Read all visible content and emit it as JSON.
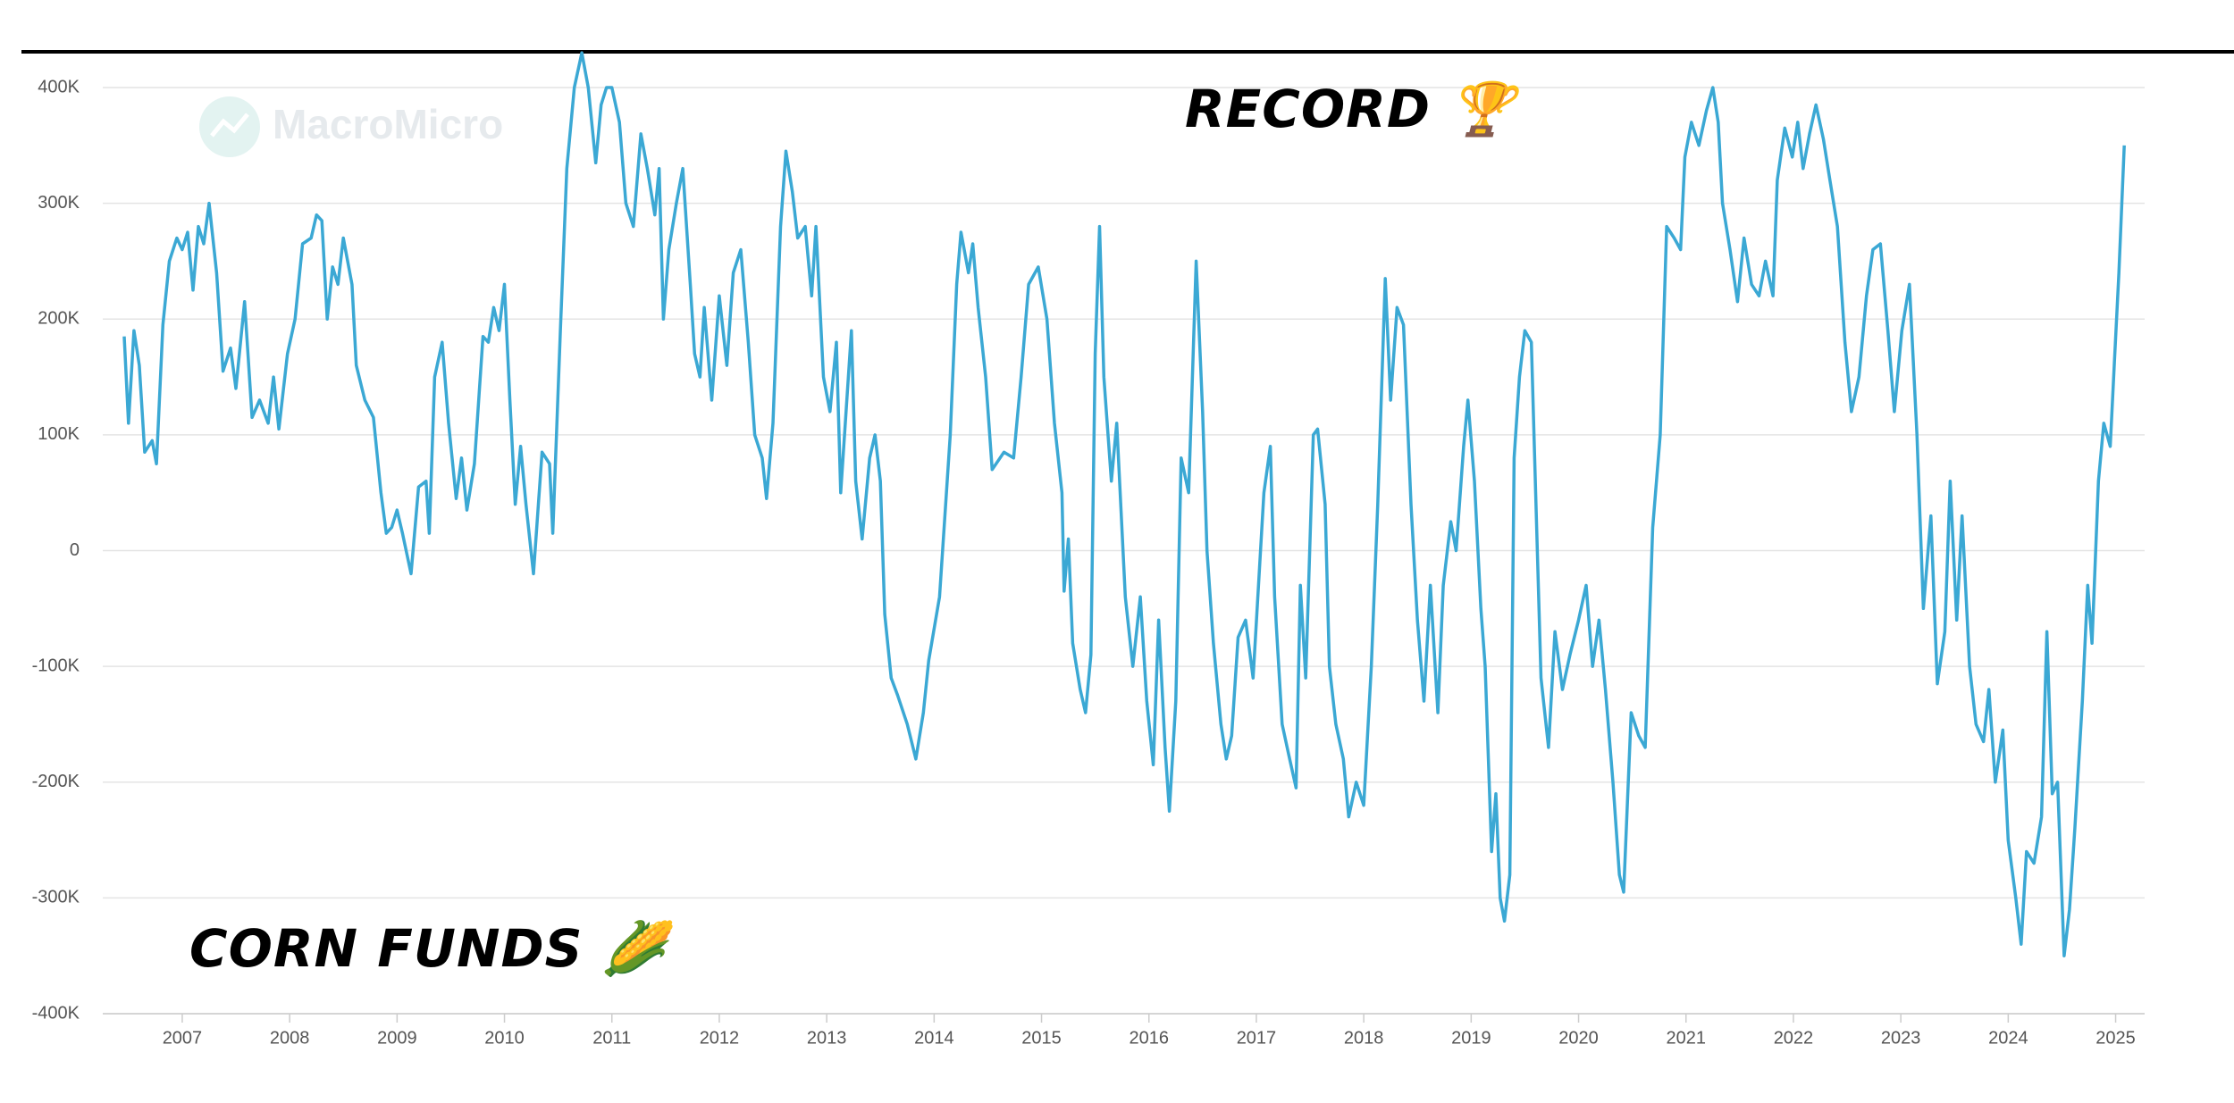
{
  "chart_data": {
    "type": "line",
    "watermark": "MacroMicro",
    "annotations": [
      "RECORD 🏆",
      "CORN FUNDS 🌽"
    ],
    "xlim": [
      2006.26,
      2025.27
    ],
    "xticks": [
      2007,
      2008,
      2009,
      2010,
      2011,
      2012,
      2013,
      2014,
      2015,
      2016,
      2017,
      2018,
      2019,
      2020,
      2021,
      2022,
      2023,
      2024,
      2025
    ],
    "ylim": [
      -400000,
      400000
    ],
    "yticks": [
      {
        "value": -400000,
        "label": "-400K"
      },
      {
        "value": -300000,
        "label": "-300K"
      },
      {
        "value": -200000,
        "label": "-200K"
      },
      {
        "value": -100000,
        "label": "-100K"
      },
      0,
      {
        "value": 100000,
        "label": "100K"
      },
      {
        "value": 200000,
        "label": "200K"
      },
      {
        "value": 300000,
        "label": "300K"
      },
      {
        "value": 400000,
        "label": "400K"
      }
    ],
    "grid": true,
    "series": [
      {
        "color": "#3ba8d4",
        "x": [
          2006.46,
          2006.5,
          2006.55,
          2006.6,
          2006.65,
          2006.72,
          2006.76,
          2006.82,
          2006.88,
          2006.95,
          2007.0,
          2007.05,
          2007.1,
          2007.15,
          2007.2,
          2007.25,
          2007.32,
          2007.38,
          2007.45,
          2007.5,
          2007.58,
          2007.65,
          2007.72,
          2007.8,
          2007.85,
          2007.9,
          2007.98,
          2008.05,
          2008.12,
          2008.2,
          2008.25,
          2008.3,
          2008.35,
          2008.4,
          2008.45,
          2008.5,
          2008.58,
          2008.62,
          2008.7,
          2008.78,
          2008.85,
          2008.9,
          2008.95,
          2009.0,
          2009.05,
          2009.13,
          2009.2,
          2009.27,
          2009.3,
          2009.35,
          2009.42,
          2009.48,
          2009.55,
          2009.6,
          2009.65,
          2009.72,
          2009.8,
          2009.85,
          2009.9,
          2009.95,
          2010.0,
          2010.05,
          2010.1,
          2010.15,
          2010.2,
          2010.27,
          2010.35,
          2010.42,
          2010.45,
          2010.52,
          2010.58,
          2010.65,
          2010.72,
          2010.78,
          2010.85,
          2010.9,
          2010.95,
          2011.0,
          2011.07,
          2011.13,
          2011.2,
          2011.27,
          2011.33,
          2011.4,
          2011.44,
          2011.48,
          2011.53,
          2011.6,
          2011.66,
          2011.73,
          2011.77,
          2011.82,
          2011.86,
          2011.93,
          2012.0,
          2012.07,
          2012.13,
          2012.2,
          2012.27,
          2012.33,
          2012.4,
          2012.44,
          2012.5,
          2012.57,
          2012.62,
          2012.68,
          2012.73,
          2012.8,
          2012.86,
          2012.9,
          2012.97,
          2013.03,
          2013.09,
          2013.13,
          2013.23,
          2013.27,
          2013.33,
          2013.4,
          2013.45,
          2013.5,
          2013.54,
          2013.6,
          2013.66,
          2013.75,
          2013.83,
          2013.9,
          2013.95,
          2014.05,
          2014.15,
          2014.21,
          2014.25,
          2014.32,
          2014.36,
          2014.41,
          2014.48,
          2014.54,
          2014.65,
          2014.74,
          2014.81,
          2014.88,
          2014.97,
          2015.05,
          2015.12,
          2015.19,
          2015.21,
          2015.25,
          2015.29,
          2015.36,
          2015.41,
          2015.46,
          2015.5,
          2015.54,
          2015.58,
          2015.65,
          2015.7,
          2015.78,
          2015.85,
          2015.92,
          2015.98,
          2016.04,
          2016.09,
          2016.15,
          2016.19,
          2016.25,
          2016.3,
          2016.37,
          2016.44,
          2016.5,
          2016.54,
          2016.6,
          2016.67,
          2016.72,
          2016.77,
          2016.83,
          2016.9,
          2016.97,
          2017.07,
          2017.13,
          2017.17,
          2017.24,
          2017.31,
          2017.37,
          2017.41,
          2017.46,
          2017.53,
          2017.57,
          2017.64,
          2017.68,
          2017.74,
          2017.81,
          2017.86,
          2017.93,
          2018.0,
          2018.07,
          2018.13,
          2018.2,
          2018.25,
          2018.31,
          2018.37,
          2018.44,
          2018.5,
          2018.56,
          2018.62,
          2018.69,
          2018.74,
          2018.81,
          2018.86,
          2018.93,
          2018.97,
          2019.03,
          2019.09,
          2019.13,
          2019.19,
          2019.23,
          2019.27,
          2019.31,
          2019.36,
          2019.4,
          2019.45,
          2019.5,
          2019.56,
          2019.6,
          2019.65,
          2019.72,
          2019.78,
          2019.85,
          2019.92,
          2020.0,
          2020.07,
          2020.13,
          2020.19,
          2020.25,
          2020.32,
          2020.38,
          2020.42,
          2020.49,
          2020.56,
          2020.62,
          2020.69,
          2020.76,
          2020.82,
          2020.89,
          2020.95,
          2020.99,
          2021.05,
          2021.12,
          2021.19,
          2021.25,
          2021.3,
          2021.34,
          2021.41,
          2021.48,
          2021.54,
          2021.61,
          2021.68,
          2021.74,
          2021.81,
          2021.85,
          2021.92,
          2021.99,
          2022.04,
          2022.09,
          2022.15,
          2022.21,
          2022.28,
          2022.34,
          2022.41,
          2022.48,
          2022.54,
          2022.61,
          2022.68,
          2022.74,
          2022.81,
          2022.88,
          2022.94,
          2023.01,
          2023.08,
          2023.15,
          2023.21,
          2023.28,
          2023.34,
          2023.41,
          2023.46,
          2023.52,
          2023.57,
          2023.64,
          2023.7,
          2023.77,
          2023.82,
          2023.88,
          2023.95,
          2024.0,
          2024.07,
          2024.12,
          2024.17,
          2024.24,
          2024.31,
          2024.36,
          2024.41,
          2024.46,
          2024.52,
          2024.57,
          2024.62,
          2024.69,
          2024.74,
          2024.78,
          2024.84,
          2024.89,
          2024.95,
          2024.99,
          2025.03,
          2025.08
        ],
        "values": [
          185000,
          110000,
          190000,
          160000,
          85000,
          95000,
          75000,
          195000,
          250000,
          270000,
          260000,
          275000,
          225000,
          280000,
          265000,
          300000,
          240000,
          155000,
          175000,
          140000,
          215000,
          115000,
          130000,
          110000,
          150000,
          105000,
          170000,
          200000,
          265000,
          270000,
          290000,
          285000,
          200000,
          245000,
          230000,
          270000,
          230000,
          160000,
          130000,
          115000,
          50000,
          15000,
          20000,
          35000,
          15000,
          -20000,
          55000,
          60000,
          15000,
          150000,
          180000,
          110000,
          45000,
          80000,
          35000,
          75000,
          185000,
          180000,
          210000,
          190000,
          230000,
          130000,
          40000,
          90000,
          40000,
          -20000,
          85000,
          75000,
          15000,
          190000,
          330000,
          400000,
          430000,
          400000,
          335000,
          385000,
          400000,
          400000,
          370000,
          300000,
          280000,
          360000,
          330000,
          290000,
          330000,
          200000,
          260000,
          300000,
          330000,
          230000,
          170000,
          150000,
          210000,
          130000,
          220000,
          160000,
          240000,
          260000,
          180000,
          100000,
          80000,
          45000,
          110000,
          280000,
          345000,
          310000,
          270000,
          280000,
          220000,
          280000,
          150000,
          120000,
          180000,
          50000,
          190000,
          60000,
          10000,
          80000,
          100000,
          60000,
          -55000,
          -110000,
          -125000,
          -150000,
          -180000,
          -140000,
          -95000,
          -40000,
          100000,
          230000,
          275000,
          240000,
          265000,
          210000,
          150000,
          70000,
          85000,
          80000,
          150000,
          230000,
          245000,
          200000,
          110000,
          50000,
          -35000,
          10000,
          -80000,
          -120000,
          -140000,
          -90000,
          170000,
          280000,
          150000,
          60000,
          110000,
          -40000,
          -100000,
          -40000,
          -130000,
          -185000,
          -60000,
          -170000,
          -225000,
          -130000,
          80000,
          50000,
          250000,
          120000,
          0,
          -80000,
          -150000,
          -180000,
          -160000,
          -75000,
          -60000,
          -110000,
          50000,
          90000,
          -40000,
          -150000,
          -180000,
          -205000,
          -30000,
          -110000,
          100000,
          105000,
          40000,
          -100000,
          -150000,
          -180000,
          -230000,
          -200000,
          -220000,
          -100000,
          40000,
          235000,
          130000,
          210000,
          195000,
          40000,
          -60000,
          -130000,
          -30000,
          -140000,
          -30000,
          25000,
          0,
          90000,
          130000,
          60000,
          -50000,
          -100000,
          -260000,
          -210000,
          -300000,
          -320000,
          -280000,
          80000,
          150000,
          190000,
          180000,
          50000,
          -110000,
          -170000,
          -70000,
          -120000,
          -90000,
          -60000,
          -30000,
          -100000,
          -60000,
          -120000,
          -200000,
          -280000,
          -295000,
          -140000,
          -160000,
          -170000,
          20000,
          100000,
          280000,
          270000,
          260000,
          340000,
          370000,
          350000,
          380000,
          400000,
          370000,
          300000,
          260000,
          215000,
          270000,
          230000,
          220000,
          250000,
          220000,
          320000,
          365000,
          340000,
          370000,
          330000,
          360000,
          385000,
          355000,
          320000,
          280000,
          180000,
          120000,
          150000,
          220000,
          260000,
          265000,
          190000,
          120000,
          190000,
          230000,
          100000,
          -50000,
          30000,
          -115000,
          -70000,
          60000,
          -60000,
          30000,
          -100000,
          -150000,
          -165000,
          -120000,
          -200000,
          -155000,
          -250000,
          -300000,
          -340000,
          -260000,
          -270000,
          -230000,
          -70000,
          -210000,
          -200000,
          -350000,
          -310000,
          -240000,
          -130000,
          -30000,
          -80000,
          60000,
          110000,
          90000,
          165000,
          240000,
          350000
        ]
      }
    ]
  }
}
